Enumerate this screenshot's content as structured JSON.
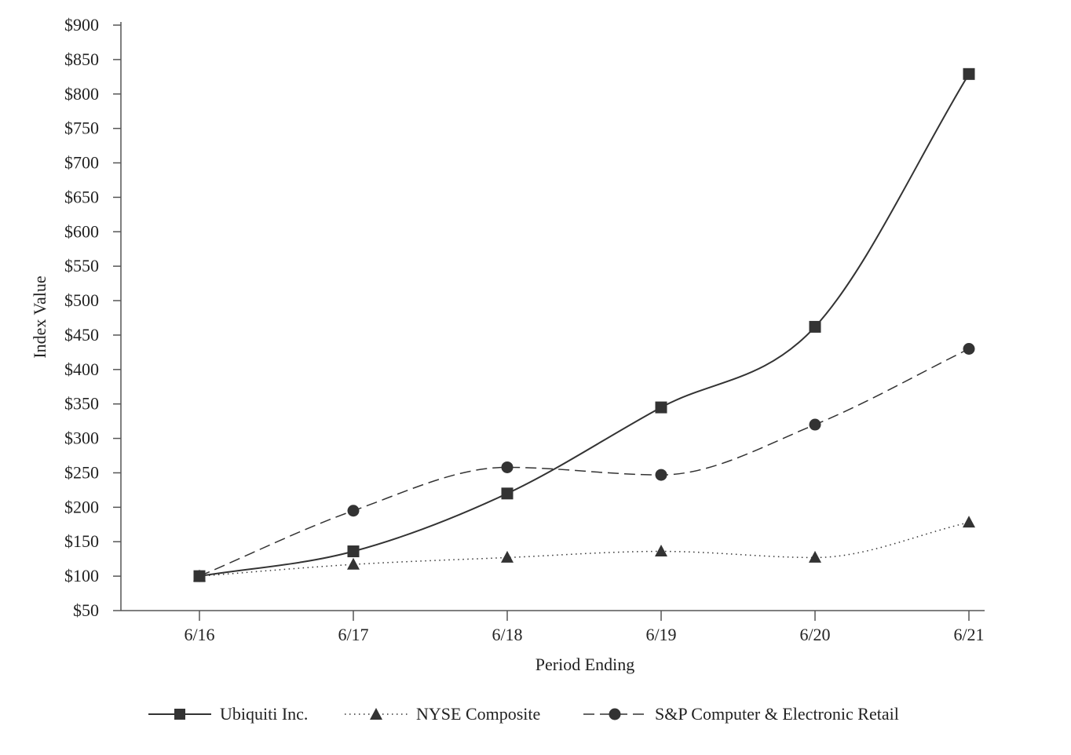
{
  "chart_data": {
    "type": "line",
    "title": "",
    "xlabel": "Period Ending",
    "ylabel": "Index Value",
    "categories": [
      "6/16",
      "6/17",
      "6/18",
      "6/19",
      "6/20",
      "6/21"
    ],
    "ylim": [
      50,
      900
    ],
    "yticks": [
      50,
      100,
      150,
      200,
      250,
      300,
      350,
      400,
      450,
      500,
      550,
      600,
      650,
      700,
      750,
      800,
      850,
      900
    ],
    "ytick_labels": [
      "$50",
      "$100",
      "$150",
      "$200",
      "$250",
      "$300",
      "$350",
      "$400",
      "$450",
      "$500",
      "$550",
      "$600",
      "$650",
      "$700",
      "$750",
      "$800",
      "$850",
      "$900"
    ],
    "grid": false,
    "legend_position": "bottom",
    "series": [
      {
        "name": "Ubiquiti Inc.",
        "marker": "square",
        "line_style": "solid",
        "color": "#333333",
        "values": [
          100,
          136,
          220,
          345,
          462,
          829
        ]
      },
      {
        "name": "NYSE Composite",
        "marker": "triangle",
        "line_style": "dotted",
        "color": "#333333",
        "values": [
          100,
          117,
          127,
          136,
          127,
          178
        ]
      },
      {
        "name": "S&P Computer & Electronic Retail",
        "marker": "circle",
        "line_style": "dashed",
        "color": "#333333",
        "values": [
          100,
          195,
          258,
          247,
          320,
          430
        ]
      }
    ]
  }
}
